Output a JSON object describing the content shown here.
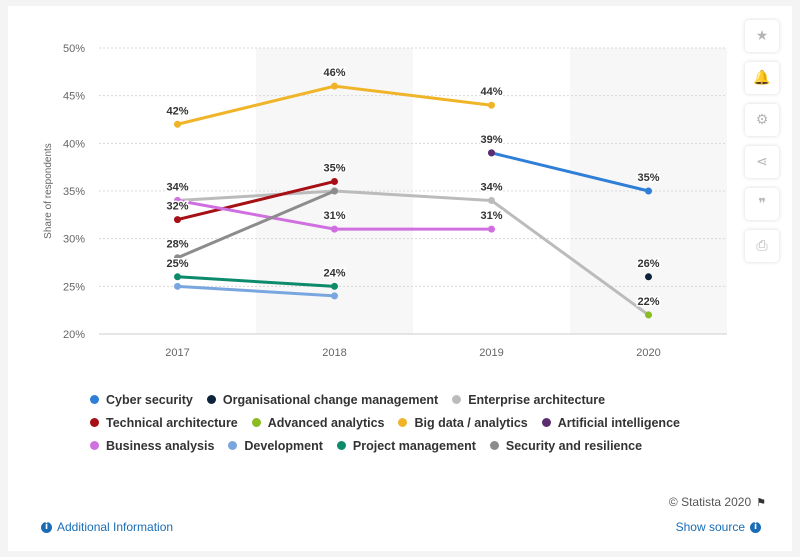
{
  "chart_data": {
    "type": "line",
    "x": [
      "2017",
      "2018",
      "2019",
      "2020"
    ],
    "ylabel": "Share of respondents",
    "ylim": [
      20,
      50
    ],
    "yticks": [
      "20%",
      "25%",
      "30%",
      "35%",
      "40%",
      "45%",
      "50%"
    ],
    "grid": true,
    "legend_position": "bottom",
    "series": [
      {
        "name": "Cyber security",
        "color": "#2f7ed8",
        "values": [
          null,
          null,
          39,
          35
        ]
      },
      {
        "name": "Organisational change management",
        "color": "#0d233a",
        "values": [
          null,
          null,
          null,
          26
        ]
      },
      {
        "name": "Enterprise architecture",
        "color": "#bbbbbb",
        "values": [
          34,
          35,
          34,
          22
        ]
      },
      {
        "name": "Technical architecture",
        "color": "#a50f15",
        "values": [
          32,
          36,
          null,
          null
        ]
      },
      {
        "name": "Advanced analytics",
        "color": "#8bbc21",
        "values": [
          null,
          null,
          null,
          22
        ]
      },
      {
        "name": "Big data / analytics",
        "color": "#f0b429",
        "values": [
          42,
          46,
          44,
          null
        ]
      },
      {
        "name": "Artificial intelligence",
        "color": "#5b2c6f",
        "values": [
          null,
          null,
          39,
          null
        ]
      },
      {
        "name": "Business analysis",
        "color": "#d070e0",
        "values": [
          34,
          31,
          31,
          null
        ]
      },
      {
        "name": "Development",
        "color": "#7aa6e0",
        "values": [
          25,
          24,
          null,
          null
        ]
      },
      {
        "name": "Project management",
        "color": "#0b8a6c",
        "values": [
          26,
          25,
          null,
          null
        ]
      },
      {
        "name": "Security and resilience",
        "color": "#8c8c8c",
        "values": [
          28,
          35,
          null,
          null
        ]
      }
    ],
    "data_labels": [
      {
        "text": "42%",
        "x": "2017",
        "y": 42
      },
      {
        "text": "46%",
        "x": "2018",
        "y": 46
      },
      {
        "text": "44%",
        "x": "2019",
        "y": 44
      },
      {
        "text": "39%",
        "x": "2019",
        "y": 39
      },
      {
        "text": "35%",
        "x": "2020",
        "y": 35
      },
      {
        "text": "35%",
        "x": "2018",
        "y": 36
      },
      {
        "text": "34%",
        "x": "2017",
        "y": 34
      },
      {
        "text": "32%",
        "x": "2017",
        "y": 32
      },
      {
        "text": "28%",
        "x": "2017",
        "y": 28
      },
      {
        "text": "25%",
        "x": "2017",
        "y": 26
      },
      {
        "text": "31%",
        "x": "2018",
        "y": 31
      },
      {
        "text": "24%",
        "x": "2018",
        "y": 25
      },
      {
        "text": "34%",
        "x": "2019",
        "y": 34
      },
      {
        "text": "31%",
        "x": "2019",
        "y": 31
      },
      {
        "text": "26%",
        "x": "2020",
        "y": 26
      },
      {
        "text": "22%",
        "x": "2020",
        "y": 22
      }
    ]
  },
  "legend_rows": [
    [
      "Cyber security",
      "Organisational change management",
      "Enterprise architecture"
    ],
    [
      "Technical architecture",
      "Advanced analytics",
      "Big data / analytics",
      "Artificial intelligence"
    ],
    [
      "Business analysis",
      "Development",
      "Project management",
      "Security and resilience"
    ]
  ],
  "tools": [
    {
      "name": "favorite-star-icon",
      "glyph": "★"
    },
    {
      "name": "notification-bell-icon",
      "glyph": "🔔"
    },
    {
      "name": "settings-gear-icon",
      "glyph": "⚙"
    },
    {
      "name": "share-icon",
      "glyph": "⋖"
    },
    {
      "name": "citation-quote-icon",
      "glyph": "❞"
    },
    {
      "name": "print-icon",
      "glyph": "⎙"
    }
  ],
  "footer": {
    "credit": "© Statista 2020",
    "additional_info": "Additional Information",
    "show_source": "Show source"
  }
}
